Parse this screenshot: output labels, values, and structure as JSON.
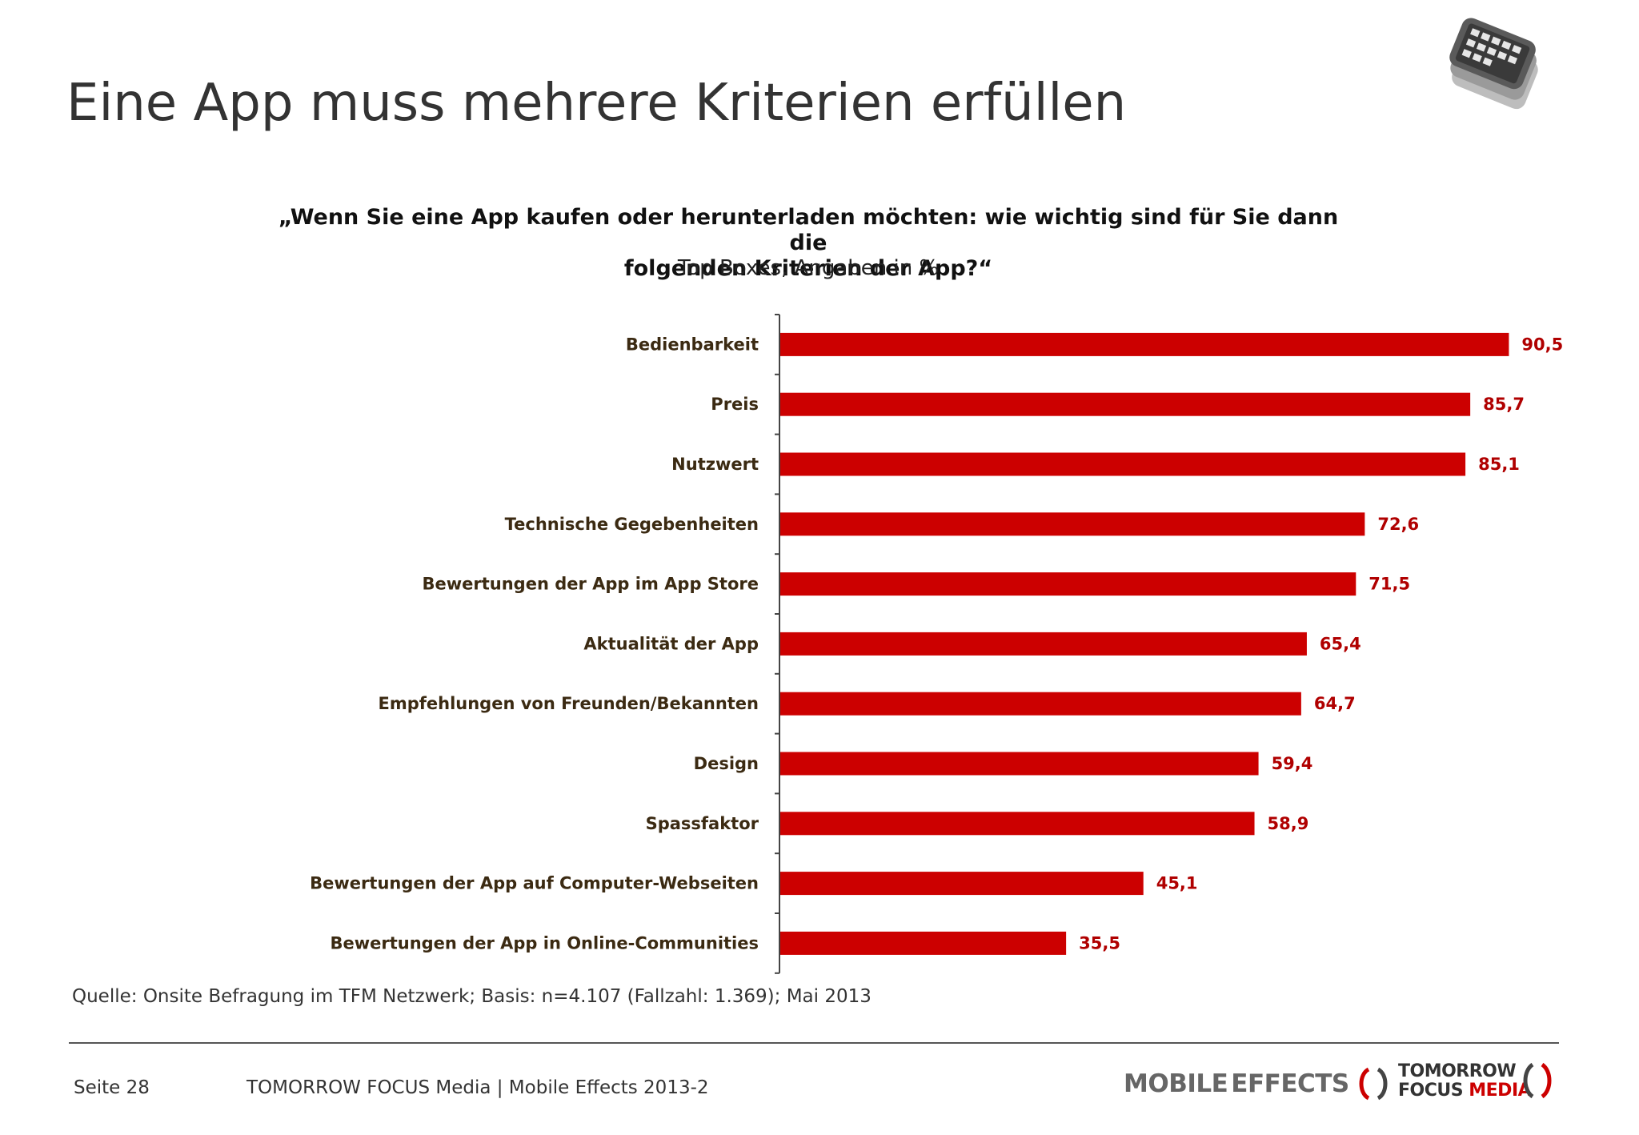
{
  "header": {
    "title": "Eine App muss mehrere Kriterien erfüllen",
    "device_icon": "smartphone-stack-icon"
  },
  "question": {
    "line1": "„Wenn Sie eine App kaufen oder herunterladen möchten: wie wichtig sind für Sie dann die",
    "line2": "folgenden Kriterien der App?“",
    "subtitle": "Top Boxes, Angaben in %"
  },
  "chart_data": {
    "type": "bar",
    "orientation": "horizontal",
    "categories": [
      "Bedienbarkeit",
      "Preis",
      "Nutzwert",
      "Technische Gegebenheiten",
      "Bewertungen der App im App Store",
      "Aktualität der App",
      "Empfehlungen von Freunden/Bekannten",
      "Design",
      "Spassfaktor",
      "Bewertungen der App auf Computer-Webseiten",
      "Bewertungen der App in Online-Communities"
    ],
    "values": [
      90.5,
      85.7,
      85.1,
      72.6,
      71.5,
      65.4,
      64.7,
      59.4,
      58.9,
      45.1,
      35.5
    ],
    "value_labels": [
      "90,5",
      "85,7",
      "85,1",
      "72,6",
      "71,5",
      "65,4",
      "64,7",
      "59,4",
      "58,9",
      "45,1",
      "35,5"
    ],
    "xlim": [
      0,
      100
    ],
    "grid": false,
    "bar_color": "#cc0000",
    "label_color": "#b00000"
  },
  "footer": {
    "source": "Quelle: Onsite Befragung im TFM Netzwerk; Basis: n=4.107 (Fallzahl: 1.369); Mai 2013",
    "page": "Seite 28",
    "text": "TOMORROW FOCUS Media | Mobile Effects 2013-2",
    "logo_mobile": "MOBILE",
    "logo_effects": "EFFECTS",
    "logo_tfm_line1": "TOMORROW",
    "logo_tfm_line2a": "FOCUS",
    "logo_tfm_line2b": "MEDIA"
  }
}
